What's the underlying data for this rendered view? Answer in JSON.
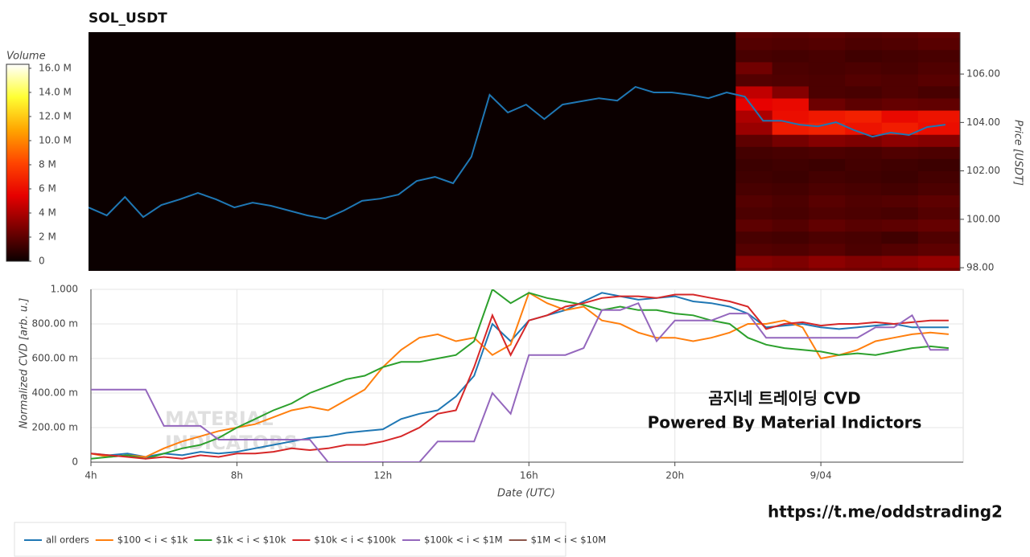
{
  "chart_data": [
    {
      "type": "heatmap",
      "title": "SOL_USDT",
      "y_label": "Price [USDT]",
      "colorbar_title": "Volume",
      "xlim": [
        4,
        27.9
      ],
      "ylim": [
        97.87,
        107.73
      ],
      "yticks": [
        {
          "value": 98,
          "label": "98.00"
        },
        {
          "value": 100,
          "label": "100.00"
        },
        {
          "value": 102,
          "label": "102.00"
        },
        {
          "value": 104,
          "label": "104.00"
        },
        {
          "value": 106,
          "label": "106.00"
        }
      ],
      "heatmap": {
        "x_bins": [
          21.75,
          22.75,
          23.75,
          24.75,
          25.75,
          26.75,
          27.9
        ],
        "y_bins": [
          97.5,
          98,
          98.5,
          99,
          99.5,
          100,
          100.5,
          101,
          101.5,
          102,
          102.5,
          103,
          103.5,
          104,
          104.5,
          105,
          105.5,
          106,
          106.5,
          107,
          107.5,
          108
        ],
        "values": [
          [
            2.5,
            2.4,
            2.6,
            2.5,
            2.3,
            2.6
          ],
          [
            3.0,
            2.8,
            3.2,
            2.9,
            3.1,
            3.4
          ],
          [
            1.8,
            1.7,
            1.9,
            1.6,
            1.8,
            2.0
          ],
          [
            1.5,
            1.4,
            1.6,
            1.5,
            1.3,
            1.7
          ],
          [
            2.0,
            1.8,
            2.1,
            1.9,
            2.0,
            2.2
          ],
          [
            1.6,
            1.5,
            1.7,
            1.6,
            1.5,
            1.8
          ],
          [
            1.8,
            1.6,
            1.9,
            1.7,
            1.8,
            2.0
          ],
          [
            1.5,
            1.4,
            1.6,
            1.5,
            1.4,
            1.6
          ],
          [
            1.3,
            1.2,
            1.4,
            1.3,
            1.2,
            1.4
          ],
          [
            1.2,
            1.3,
            1.2,
            1.4,
            1.3,
            1.2
          ],
          [
            1.4,
            1.5,
            1.6,
            1.5,
            1.7,
            1.6
          ],
          [
            2.0,
            2.6,
            3.0,
            2.8,
            3.2,
            3.0
          ],
          [
            3.5,
            6.5,
            6.8,
            6.2,
            6.6,
            6.0
          ],
          [
            4.0,
            6.0,
            6.4,
            6.7,
            5.8,
            6.2
          ],
          [
            5.5,
            5.8,
            2.4,
            2.0,
            2.2,
            2.1
          ],
          [
            4.5,
            3.0,
            1.6,
            1.5,
            1.7,
            1.5
          ],
          [
            1.8,
            1.7,
            1.6,
            1.8,
            1.7,
            1.9
          ],
          [
            2.5,
            1.6,
            1.5,
            1.6,
            1.5,
            1.7
          ],
          [
            1.5,
            1.4,
            1.5,
            1.3,
            1.4,
            1.5
          ],
          [
            1.8,
            1.7,
            1.8,
            1.6,
            1.7,
            1.9
          ],
          [
            2.0,
            1.9,
            2.0,
            1.8,
            1.9,
            2.1
          ]
        ],
        "clim": [
          0,
          16.33
        ],
        "colorscale": [
          "#0b0000",
          "#7a0000",
          "#e60000",
          "#ff4500",
          "#ffa500",
          "#ffff33",
          "#ffffff"
        ],
        "ticks": [
          0,
          {
            "value": 2,
            "label": "2 M"
          },
          {
            "value": 4,
            "label": "4 M"
          },
          {
            "value": 6,
            "label": "6 M"
          },
          {
            "value": 8,
            "label": "8 M"
          },
          {
            "value": 10,
            "label": "10.0 M"
          },
          {
            "value": 12,
            "label": "12.0 M"
          },
          {
            "value": 14,
            "label": "14.0 M"
          },
          {
            "value": 16,
            "label": "16.0 M"
          }
        ]
      },
      "series": [
        {
          "name": "Price",
          "color": "#1f77b4",
          "x": [
            4,
            4.5,
            5,
            5.5,
            6,
            6.5,
            7,
            7.5,
            8,
            8.5,
            9,
            9.5,
            10,
            10.5,
            11,
            11.5,
            12,
            12.5,
            13,
            13.5,
            14,
            14.5,
            15,
            15.5,
            16,
            16.5,
            17,
            17.5,
            18,
            18.5,
            19,
            19.5,
            20,
            20.5,
            21,
            21.5,
            22,
            22.5,
            23,
            23.5,
            24,
            24.5,
            25,
            25.5,
            26,
            26.5,
            27,
            27.5
          ],
          "values": [
            100.49,
            100.16,
            100.92,
            100.09,
            100.59,
            100.82,
            101.09,
            100.82,
            100.49,
            100.69,
            100.56,
            100.36,
            100.16,
            100.02,
            100.36,
            100.76,
            100.85,
            101.02,
            101.58,
            101.75,
            101.49,
            102.58,
            105.14,
            104.41,
            104.74,
            104.14,
            104.74,
            104.87,
            105.0,
            104.9,
            105.47,
            105.24,
            105.24,
            105.14,
            105.0,
            105.24,
            105.07,
            104.07,
            104.07,
            103.91,
            103.84,
            104.01,
            103.68,
            103.41,
            103.58,
            103.48,
            103.81,
            103.91
          ]
        }
      ]
    },
    {
      "type": "line",
      "x_label": "Date (UTC)",
      "y_label": "Normalized CVD [arb. u.]",
      "xlim": [
        4,
        27.9
      ],
      "ylim": [
        0,
        1
      ],
      "grid": true,
      "xticks": [
        {
          "value": 4,
          "label": "4h"
        },
        {
          "value": 8,
          "label": "8h"
        },
        {
          "value": 12,
          "label": "12h"
        },
        {
          "value": 16,
          "label": "16h"
        },
        {
          "value": 20,
          "label": "20h"
        },
        {
          "value": 24,
          "label": "9/04"
        }
      ],
      "yticks": [
        0,
        {
          "value": 0.2,
          "label": "200.00 m"
        },
        {
          "value": 0.4,
          "label": "400.00 m"
        },
        {
          "value": 0.6,
          "label": "600.00 m"
        },
        {
          "value": 0.8,
          "label": "800.00 m"
        },
        {
          "value": 1,
          "label": "1.000"
        }
      ],
      "x": [
        4,
        4.5,
        5,
        5.5,
        6,
        6.5,
        7,
        7.5,
        8,
        8.5,
        9,
        9.5,
        10,
        10.5,
        11,
        11.5,
        12,
        12.5,
        13,
        13.5,
        14,
        14.5,
        15,
        15.5,
        16,
        16.5,
        17,
        17.5,
        18,
        18.5,
        19,
        19.5,
        20,
        20.5,
        21,
        21.5,
        22,
        22.5,
        23,
        23.5,
        24,
        24.5,
        25,
        25.5,
        26,
        26.5,
        27,
        27.5
      ],
      "series": [
        {
          "name": "all orders",
          "color": "#1f77b4",
          "values": [
            0.05,
            0.04,
            0.05,
            0.03,
            0.05,
            0.04,
            0.06,
            0.05,
            0.06,
            0.08,
            0.1,
            0.12,
            0.14,
            0.15,
            0.17,
            0.18,
            0.19,
            0.25,
            0.28,
            0.3,
            0.38,
            0.5,
            0.8,
            0.7,
            0.82,
            0.85,
            0.88,
            0.93,
            0.98,
            0.96,
            0.94,
            0.95,
            0.96,
            0.93,
            0.92,
            0.9,
            0.86,
            0.78,
            0.79,
            0.8,
            0.78,
            0.77,
            0.78,
            0.79,
            0.8,
            0.78,
            0.78,
            0.78
          ]
        },
        {
          "name": "$100 < i < $1k",
          "color": "#ff7f0e",
          "values": [
            0.05,
            0.03,
            0.04,
            0.03,
            0.08,
            0.12,
            0.15,
            0.18,
            0.2,
            0.22,
            0.26,
            0.3,
            0.32,
            0.3,
            0.36,
            0.42,
            0.55,
            0.65,
            0.72,
            0.74,
            0.7,
            0.72,
            0.62,
            0.68,
            0.98,
            0.92,
            0.88,
            0.9,
            0.82,
            0.8,
            0.75,
            0.72,
            0.72,
            0.7,
            0.72,
            0.75,
            0.8,
            0.8,
            0.82,
            0.78,
            0.6,
            0.62,
            0.65,
            0.7,
            0.72,
            0.74,
            0.75,
            0.74
          ]
        },
        {
          "name": "$1k < i < $10k",
          "color": "#2ca02c",
          "values": [
            0.02,
            0.03,
            0.04,
            0.02,
            0.05,
            0.08,
            0.1,
            0.14,
            0.2,
            0.25,
            0.3,
            0.34,
            0.4,
            0.44,
            0.48,
            0.5,
            0.55,
            0.58,
            0.58,
            0.6,
            0.62,
            0.7,
            1.0,
            0.92,
            0.98,
            0.95,
            0.93,
            0.91,
            0.88,
            0.9,
            0.88,
            0.88,
            0.86,
            0.85,
            0.82,
            0.8,
            0.72,
            0.68,
            0.66,
            0.65,
            0.64,
            0.62,
            0.63,
            0.62,
            0.64,
            0.66,
            0.67,
            0.66
          ]
        },
        {
          "name": "$10k < i < $100k",
          "color": "#d62728",
          "values": [
            0.05,
            0.04,
            0.03,
            0.02,
            0.03,
            0.02,
            0.04,
            0.03,
            0.05,
            0.05,
            0.06,
            0.08,
            0.07,
            0.08,
            0.1,
            0.1,
            0.12,
            0.15,
            0.2,
            0.28,
            0.3,
            0.55,
            0.85,
            0.62,
            0.82,
            0.85,
            0.9,
            0.92,
            0.95,
            0.96,
            0.96,
            0.95,
            0.97,
            0.97,
            0.95,
            0.93,
            0.9,
            0.77,
            0.8,
            0.81,
            0.79,
            0.8,
            0.8,
            0.81,
            0.8,
            0.81,
            0.82,
            0.82
          ]
        },
        {
          "name": "$100k < i < $1M",
          "color": "#9467bd",
          "values": [
            0.42,
            0.42,
            0.42,
            0.42,
            0.21,
            0.21,
            0.21,
            0.13,
            0.13,
            0.13,
            0.13,
            0.13,
            0.13,
            0,
            0,
            0,
            0,
            0,
            0,
            0.12,
            0.12,
            0.12,
            0.4,
            0.28,
            0.62,
            0.62,
            0.62,
            0.66,
            0.88,
            0.88,
            0.92,
            0.7,
            0.82,
            0.82,
            0.82,
            0.86,
            0.86,
            0.72,
            0.72,
            0.72,
            0.72,
            0.72,
            0.72,
            0.78,
            0.78,
            0.85,
            0.65,
            0.65
          ]
        },
        {
          "name": "$1M < i < $10M",
          "color": "#8c564b",
          "values": [
            null,
            null,
            null,
            null,
            null,
            null,
            null,
            null,
            null,
            null,
            null,
            null,
            null,
            null,
            null,
            null,
            null,
            null,
            null,
            null,
            null,
            null,
            null,
            null,
            null,
            null,
            null,
            null,
            null,
            null,
            null,
            null,
            null,
            null,
            null,
            null,
            null,
            null,
            null,
            null,
            null,
            null,
            null,
            null,
            null,
            null,
            null,
            null
          ]
        }
      ],
      "annotations": [
        "곰지네 트레이딩 CVD",
        "Powered By Material Indictors",
        "https://t.me/oddstrading2"
      ],
      "watermark": [
        "MATERIAL",
        "INDICATORS"
      ]
    }
  ]
}
